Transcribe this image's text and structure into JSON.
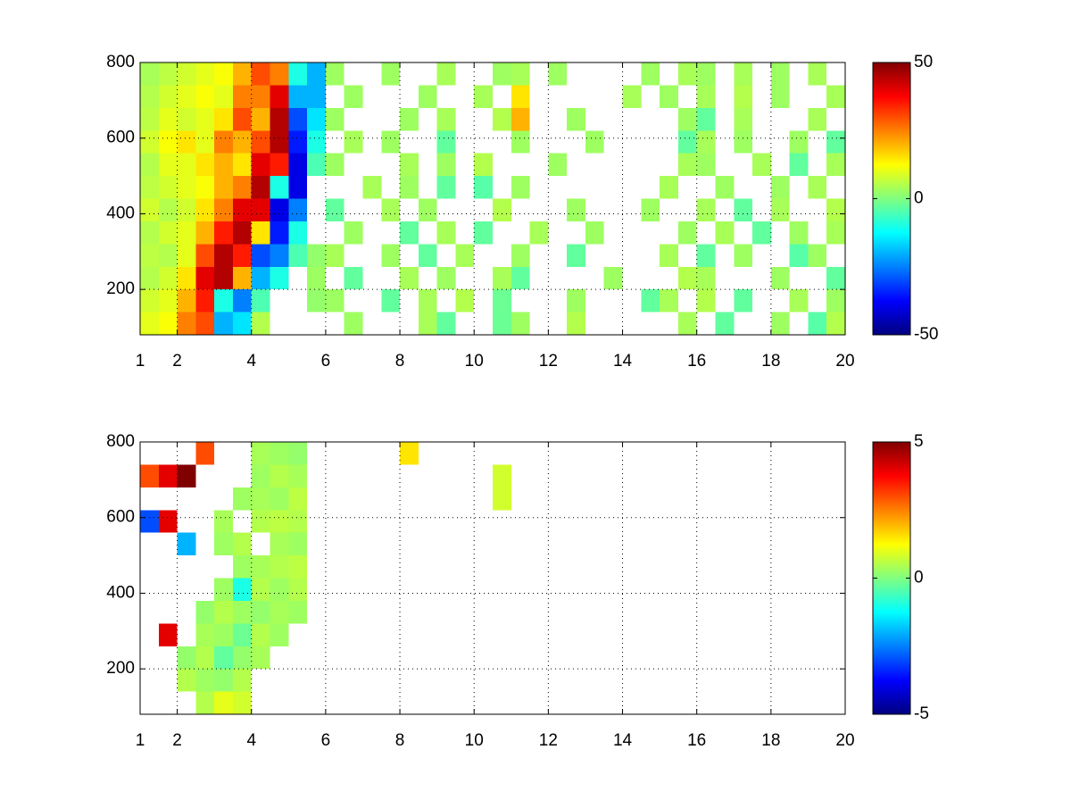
{
  "chart_data": [
    {
      "type": "heatmap",
      "colormap": "jet",
      "grid": true,
      "x": [
        1.25,
        1.75,
        2.25,
        2.75,
        3.25,
        3.75,
        4.25,
        4.75,
        5.25,
        5.75,
        6.25,
        6.75,
        7.25,
        7.75,
        8.25,
        8.75,
        9.25,
        9.75,
        10.25,
        10.75,
        11.25,
        11.75,
        12.25,
        12.75,
        13.25,
        13.75,
        14.25,
        14.75,
        15.25,
        15.75,
        16.25,
        16.75,
        17.25,
        17.75,
        18.25,
        18.75,
        19.25,
        19.75
      ],
      "y": [
        110,
        170,
        230,
        290,
        350,
        410,
        470,
        530,
        590,
        650,
        710,
        770
      ],
      "values": [
        [
          10,
          12,
          25,
          30,
          -20,
          -15,
          5,
          null,
          null,
          null,
          null,
          3,
          null,
          null,
          null,
          4,
          -3,
          null,
          null,
          -2,
          3,
          null,
          null,
          5,
          null,
          null,
          null,
          null,
          null,
          4,
          null,
          -3,
          null,
          null,
          3,
          null,
          -4,
          5
        ],
        [
          8,
          10,
          20,
          35,
          -10,
          -25,
          -5,
          null,
          null,
          2,
          3,
          null,
          null,
          -3,
          null,
          4,
          null,
          5,
          null,
          -2,
          null,
          null,
          null,
          3,
          null,
          null,
          null,
          -3,
          4,
          null,
          5,
          null,
          -3,
          null,
          null,
          4,
          null,
          3
        ],
        [
          5,
          8,
          15,
          40,
          45,
          20,
          -20,
          -10,
          null,
          3,
          null,
          -3,
          null,
          null,
          4,
          null,
          3,
          null,
          null,
          4,
          -3,
          null,
          null,
          null,
          null,
          3,
          null,
          null,
          null,
          5,
          4,
          null,
          null,
          null,
          3,
          null,
          null,
          -3
        ],
        [
          6,
          5,
          10,
          30,
          45,
          35,
          -30,
          -25,
          -5,
          2,
          4,
          null,
          null,
          3,
          null,
          -3,
          null,
          4,
          null,
          null,
          3,
          null,
          null,
          -3,
          null,
          null,
          null,
          null,
          4,
          null,
          -3,
          null,
          3,
          null,
          null,
          -4,
          3,
          null
        ],
        [
          5,
          8,
          10,
          20,
          35,
          45,
          15,
          -35,
          -10,
          null,
          null,
          3,
          null,
          null,
          -3,
          null,
          4,
          null,
          -3,
          null,
          null,
          4,
          null,
          null,
          3,
          null,
          null,
          null,
          null,
          3,
          null,
          4,
          null,
          -3,
          null,
          3,
          null,
          4
        ],
        [
          8,
          5,
          8,
          15,
          25,
          40,
          40,
          -40,
          -25,
          null,
          -3,
          null,
          null,
          4,
          null,
          3,
          null,
          null,
          null,
          5,
          null,
          null,
          null,
          3,
          null,
          null,
          null,
          3,
          null,
          null,
          4,
          null,
          -3,
          null,
          4,
          null,
          null,
          5
        ],
        [
          6,
          8,
          10,
          12,
          20,
          25,
          45,
          -10,
          -40,
          null,
          null,
          null,
          4,
          null,
          3,
          null,
          -3,
          null,
          -4,
          null,
          3,
          null,
          null,
          null,
          null,
          null,
          null,
          null,
          4,
          null,
          null,
          3,
          null,
          null,
          3,
          null,
          4,
          null
        ],
        [
          5,
          10,
          10,
          15,
          20,
          15,
          40,
          35,
          -40,
          -5,
          3,
          null,
          null,
          null,
          4,
          null,
          3,
          null,
          5,
          null,
          null,
          null,
          3,
          null,
          null,
          null,
          null,
          null,
          null,
          4,
          3,
          null,
          null,
          4,
          null,
          -3,
          null,
          4
        ],
        [
          8,
          12,
          15,
          10,
          25,
          20,
          30,
          45,
          -35,
          -10,
          null,
          4,
          null,
          3,
          null,
          null,
          -3,
          null,
          null,
          null,
          3,
          null,
          null,
          null,
          3,
          null,
          null,
          null,
          null,
          -3,
          4,
          null,
          3,
          null,
          null,
          3,
          null,
          -3
        ],
        [
          6,
          10,
          8,
          10,
          15,
          30,
          20,
          45,
          -30,
          -15,
          3,
          null,
          null,
          null,
          3,
          null,
          4,
          null,
          null,
          5,
          20,
          null,
          null,
          3,
          null,
          null,
          null,
          null,
          null,
          3,
          -3,
          null,
          4,
          null,
          null,
          null,
          4,
          null
        ],
        [
          5,
          8,
          10,
          12,
          10,
          25,
          25,
          40,
          -20,
          -20,
          null,
          3,
          null,
          null,
          null,
          3,
          null,
          null,
          4,
          null,
          15,
          null,
          null,
          null,
          null,
          null,
          4,
          null,
          3,
          null,
          4,
          null,
          5,
          null,
          3,
          null,
          null,
          4
        ],
        [
          4,
          6,
          8,
          10,
          12,
          20,
          30,
          25,
          -10,
          -20,
          3,
          null,
          null,
          3,
          null,
          null,
          4,
          null,
          null,
          3,
          4,
          null,
          3,
          null,
          null,
          null,
          null,
          3,
          null,
          4,
          3,
          null,
          4,
          null,
          3,
          null,
          4,
          null
        ]
      ],
      "xlim": [
        1,
        20
      ],
      "ylim": [
        80,
        800
      ],
      "xticks": [
        1,
        2,
        4,
        6,
        8,
        10,
        12,
        14,
        16,
        18,
        20
      ],
      "yticks": [
        200,
        400,
        600,
        800
      ],
      "clim": [
        -50,
        50
      ],
      "cticks": [
        -50,
        0,
        50
      ]
    },
    {
      "type": "heatmap",
      "colormap": "jet",
      "grid": true,
      "x": [
        1.25,
        1.75,
        2.25,
        2.75,
        3.25,
        3.75,
        4.25,
        4.75,
        5.25,
        5.75,
        6.25,
        6.75,
        7.25,
        7.75,
        8.25,
        8.75,
        9.25,
        9.75,
        10.25,
        10.75,
        11.25,
        11.75,
        12.25,
        12.75,
        13.25,
        13.75,
        14.25,
        14.75,
        15.25,
        15.75,
        16.25,
        16.75,
        17.25,
        17.75,
        18.25,
        18.75,
        19.25,
        19.75
      ],
      "y": [
        110,
        170,
        230,
        290,
        350,
        410,
        470,
        530,
        590,
        650,
        710,
        770
      ],
      "values": [
        [
          null,
          null,
          null,
          0.5,
          1,
          0.8,
          null,
          null,
          null,
          null,
          null,
          null,
          null,
          null,
          null,
          null,
          null,
          null,
          null,
          null,
          null,
          null,
          null,
          null,
          null,
          null,
          null,
          null,
          null,
          null,
          null,
          null,
          null,
          null,
          null,
          null,
          null,
          null
        ],
        [
          null,
          null,
          0.5,
          0.3,
          0.2,
          0.5,
          null,
          null,
          null,
          null,
          null,
          null,
          null,
          null,
          null,
          null,
          null,
          null,
          null,
          null,
          null,
          null,
          null,
          null,
          null,
          null,
          null,
          null,
          null,
          null,
          null,
          null,
          null,
          null,
          null,
          null,
          null,
          null
        ],
        [
          null,
          null,
          0.2,
          0.5,
          -0.3,
          0.2,
          0.4,
          null,
          null,
          null,
          null,
          null,
          null,
          null,
          null,
          null,
          null,
          null,
          null,
          null,
          null,
          null,
          null,
          null,
          null,
          null,
          null,
          null,
          null,
          null,
          null,
          null,
          null,
          null,
          null,
          null,
          null,
          null
        ],
        [
          null,
          4,
          null,
          0.4,
          0.3,
          -0.2,
          0.5,
          0.3,
          null,
          null,
          null,
          null,
          null,
          null,
          null,
          null,
          null,
          null,
          null,
          null,
          null,
          null,
          null,
          null,
          null,
          null,
          null,
          null,
          null,
          null,
          null,
          null,
          null,
          null,
          null,
          null,
          null,
          null
        ],
        [
          null,
          null,
          null,
          0.2,
          0.5,
          0.3,
          0.2,
          0.4,
          0.3,
          null,
          null,
          null,
          null,
          null,
          null,
          null,
          null,
          null,
          null,
          null,
          null,
          null,
          null,
          null,
          null,
          null,
          null,
          null,
          null,
          null,
          null,
          null,
          null,
          null,
          null,
          null,
          null,
          null
        ],
        [
          null,
          null,
          null,
          null,
          0.3,
          -1,
          0.5,
          0.3,
          0.5,
          null,
          null,
          null,
          null,
          null,
          null,
          null,
          null,
          null,
          null,
          null,
          null,
          null,
          null,
          null,
          null,
          null,
          null,
          null,
          null,
          null,
          null,
          null,
          null,
          null,
          null,
          null,
          null,
          null
        ],
        [
          null,
          null,
          null,
          null,
          null,
          0.3,
          0.4,
          0.5,
          0.6,
          null,
          null,
          null,
          null,
          null,
          null,
          null,
          null,
          null,
          null,
          null,
          null,
          null,
          null,
          null,
          null,
          null,
          null,
          null,
          null,
          null,
          null,
          null,
          null,
          null,
          null,
          null,
          null,
          null
        ],
        [
          null,
          null,
          -2,
          null,
          0.3,
          0.5,
          null,
          0.4,
          0.3,
          null,
          null,
          null,
          null,
          null,
          null,
          null,
          null,
          null,
          null,
          null,
          null,
          null,
          null,
          null,
          null,
          null,
          null,
          null,
          null,
          null,
          null,
          null,
          null,
          null,
          null,
          null,
          null,
          null
        ],
        [
          -3,
          4,
          null,
          null,
          0.4,
          null,
          0.5,
          0.6,
          0.5,
          null,
          null,
          null,
          null,
          null,
          null,
          null,
          null,
          null,
          null,
          null,
          null,
          null,
          null,
          null,
          null,
          null,
          null,
          null,
          null,
          null,
          null,
          null,
          null,
          null,
          null,
          null,
          null,
          null
        ],
        [
          null,
          null,
          null,
          null,
          null,
          0.3,
          0.4,
          0.3,
          0.6,
          null,
          null,
          null,
          null,
          null,
          null,
          null,
          null,
          null,
          null,
          0.8,
          null,
          null,
          null,
          null,
          null,
          null,
          null,
          null,
          null,
          null,
          null,
          null,
          null,
          null,
          null,
          null,
          null,
          null
        ],
        [
          3,
          4,
          5,
          null,
          null,
          null,
          0.3,
          0.5,
          0.4,
          null,
          null,
          null,
          null,
          null,
          null,
          null,
          null,
          null,
          null,
          0.8,
          null,
          null,
          null,
          null,
          null,
          null,
          null,
          null,
          null,
          null,
          null,
          null,
          null,
          null,
          null,
          null,
          null,
          null
        ],
        [
          null,
          null,
          null,
          3,
          null,
          null,
          0.4,
          0.3,
          0.2,
          null,
          null,
          null,
          null,
          null,
          1.5,
          null,
          null,
          null,
          null,
          null,
          null,
          null,
          null,
          null,
          null,
          null,
          null,
          null,
          null,
          null,
          null,
          null,
          null,
          null,
          null,
          null,
          null,
          null
        ]
      ],
      "xlim": [
        1,
        20
      ],
      "ylim": [
        80,
        800
      ],
      "xticks": [
        1,
        2,
        4,
        6,
        8,
        10,
        12,
        14,
        16,
        18,
        20
      ],
      "yticks": [
        200,
        400,
        600,
        800
      ],
      "clim": [
        -5,
        5
      ],
      "cticks": [
        -5,
        0,
        5
      ]
    }
  ]
}
